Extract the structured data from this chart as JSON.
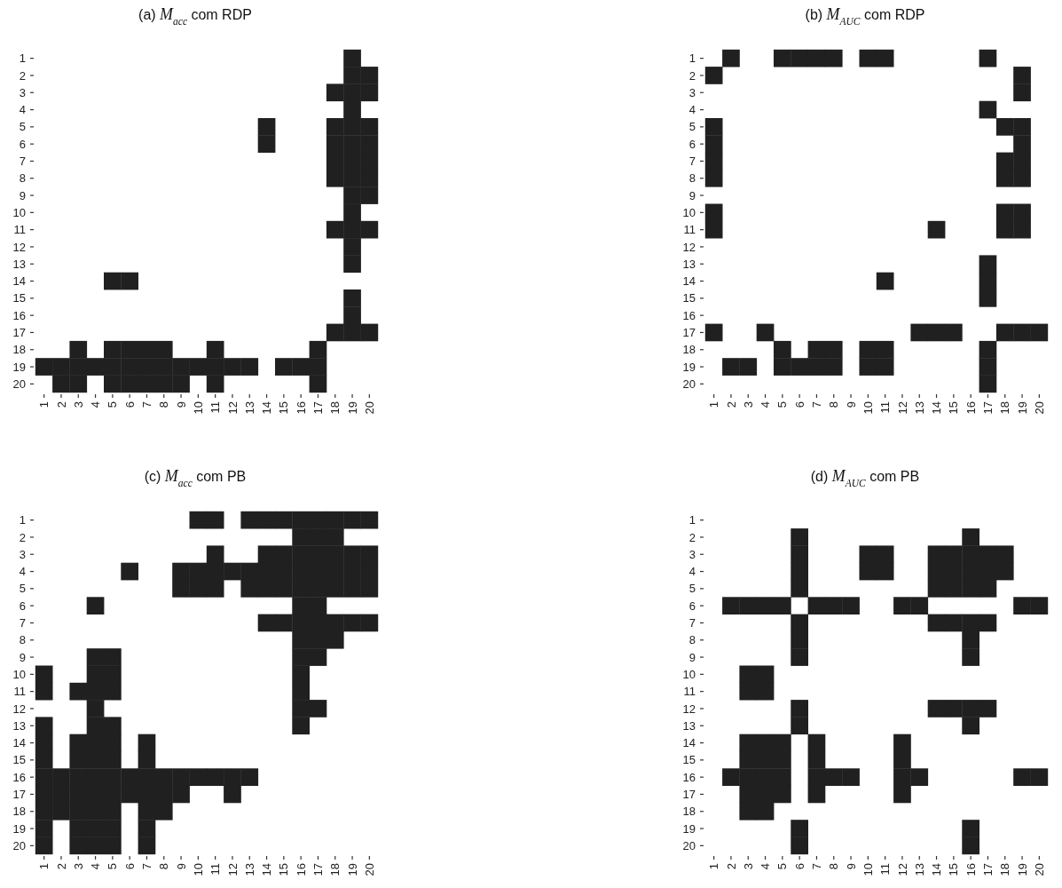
{
  "chart_data": [
    {
      "type": "scatter",
      "title": "(a) M$_{acc}$ com RDP",
      "marker": "square",
      "color": "#202020",
      "xlim": [
        1,
        20
      ],
      "ylim": [
        20,
        1
      ],
      "xticks": [
        1,
        2,
        3,
        4,
        5,
        6,
        7,
        8,
        9,
        10,
        11,
        12,
        13,
        14,
        15,
        16,
        17,
        18,
        19,
        20
      ],
      "yticks": [
        1,
        2,
        3,
        4,
        5,
        6,
        7,
        8,
        9,
        10,
        11,
        12,
        13,
        14,
        15,
        16,
        17,
        18,
        19,
        20
      ],
      "x": [
        19,
        19,
        20,
        18,
        19,
        20,
        19,
        14,
        18,
        19,
        20,
        14,
        18,
        19,
        20,
        18,
        19,
        20,
        18,
        19,
        20,
        19,
        20,
        19,
        18,
        19,
        20,
        19,
        19,
        5,
        6,
        19,
        19,
        18,
        19,
        20,
        3,
        5,
        6,
        7,
        8,
        11,
        17,
        1,
        2,
        3,
        4,
        5,
        6,
        7,
        8,
        9,
        10,
        11,
        12,
        13,
        15,
        16,
        17,
        2,
        3,
        5,
        6,
        7,
        8,
        9,
        11,
        17
      ],
      "values": [
        1,
        2,
        2,
        3,
        3,
        3,
        4,
        5,
        5,
        5,
        5,
        6,
        6,
        6,
        6,
        7,
        7,
        7,
        8,
        8,
        8,
        9,
        9,
        10,
        11,
        11,
        11,
        12,
        13,
        14,
        14,
        15,
        16,
        17,
        17,
        17,
        18,
        18,
        18,
        18,
        18,
        18,
        18,
        19,
        19,
        19,
        19,
        19,
        19,
        19,
        19,
        19,
        19,
        19,
        19,
        19,
        19,
        19,
        19,
        20,
        20,
        20,
        20,
        20,
        20,
        20,
        20,
        20
      ]
    },
    {
      "type": "scatter",
      "title": "(b) M$_{AUC}$ com RDP",
      "marker": "square",
      "color": "#202020",
      "xlim": [
        1,
        20
      ],
      "ylim": [
        20,
        1
      ],
      "xticks": [
        1,
        2,
        3,
        4,
        5,
        6,
        7,
        8,
        9,
        10,
        11,
        12,
        13,
        14,
        15,
        16,
        17,
        18,
        19,
        20
      ],
      "yticks": [
        1,
        2,
        3,
        4,
        5,
        6,
        7,
        8,
        9,
        10,
        11,
        12,
        13,
        14,
        15,
        16,
        17,
        18,
        19,
        20
      ],
      "x": [
        2,
        5,
        6,
        7,
        8,
        10,
        11,
        17,
        1,
        19,
        19,
        17,
        1,
        18,
        19,
        1,
        19,
        1,
        18,
        19,
        1,
        18,
        19,
        1,
        18,
        19,
        1,
        14,
        18,
        19,
        17,
        11,
        17,
        17,
        1,
        4,
        13,
        14,
        15,
        18,
        19,
        20,
        5,
        7,
        8,
        10,
        11,
        17,
        2,
        3,
        5,
        6,
        7,
        8,
        10,
        11,
        17,
        17
      ],
      "values": [
        1,
        1,
        1,
        1,
        1,
        1,
        1,
        1,
        2,
        2,
        3,
        4,
        5,
        5,
        5,
        6,
        6,
        7,
        7,
        7,
        8,
        8,
        8,
        10,
        10,
        10,
        11,
        11,
        11,
        11,
        13,
        14,
        14,
        15,
        17,
        17,
        17,
        17,
        17,
        17,
        17,
        17,
        18,
        18,
        18,
        18,
        18,
        18,
        19,
        19,
        19,
        19,
        19,
        19,
        19,
        19,
        19,
        20
      ]
    },
    {
      "type": "scatter",
      "title": "(c) M$_{acc}$ com PB",
      "marker": "square",
      "color": "#202020",
      "xlim": [
        1,
        20
      ],
      "ylim": [
        20,
        1
      ],
      "xticks": [
        1,
        2,
        3,
        4,
        5,
        6,
        7,
        8,
        9,
        10,
        11,
        12,
        13,
        14,
        15,
        16,
        17,
        18,
        19,
        20
      ],
      "yticks": [
        1,
        2,
        3,
        4,
        5,
        6,
        7,
        8,
        9,
        10,
        11,
        12,
        13,
        14,
        15,
        16,
        17,
        18,
        19,
        20
      ],
      "x": [
        10,
        11,
        13,
        14,
        15,
        16,
        17,
        18,
        19,
        20,
        16,
        17,
        18,
        11,
        14,
        15,
        16,
        17,
        18,
        19,
        20,
        6,
        9,
        10,
        11,
        12,
        13,
        14,
        15,
        16,
        17,
        18,
        19,
        20,
        9,
        10,
        11,
        13,
        14,
        15,
        16,
        17,
        18,
        19,
        20,
        4,
        16,
        17,
        14,
        15,
        16,
        17,
        18,
        19,
        20,
        16,
        17,
        18,
        4,
        5,
        16,
        17,
        1,
        4,
        5,
        16,
        1,
        3,
        4,
        5,
        16,
        4,
        16,
        17,
        1,
        4,
        5,
        16,
        1,
        3,
        4,
        5,
        7,
        1,
        3,
        4,
        5,
        7,
        1,
        2,
        3,
        4,
        5,
        6,
        7,
        8,
        9,
        10,
        11,
        12,
        13,
        1,
        2,
        3,
        4,
        5,
        6,
        7,
        8,
        9,
        12,
        1,
        2,
        3,
        4,
        5,
        7,
        8,
        1,
        3,
        4,
        5,
        7,
        1,
        3,
        4,
        5,
        7
      ],
      "values": [
        1,
        1,
        1,
        1,
        1,
        1,
        1,
        1,
        1,
        1,
        2,
        2,
        2,
        3,
        3,
        3,
        3,
        3,
        3,
        3,
        3,
        4,
        4,
        4,
        4,
        4,
        4,
        4,
        4,
        4,
        4,
        4,
        4,
        4,
        5,
        5,
        5,
        5,
        5,
        5,
        5,
        5,
        5,
        5,
        5,
        6,
        6,
        6,
        7,
        7,
        7,
        7,
        7,
        7,
        7,
        8,
        8,
        8,
        9,
        9,
        9,
        9,
        10,
        10,
        10,
        10,
        11,
        11,
        11,
        11,
        11,
        12,
        12,
        12,
        13,
        13,
        13,
        13,
        14,
        14,
        14,
        14,
        14,
        15,
        15,
        15,
        15,
        15,
        16,
        16,
        16,
        16,
        16,
        16,
        16,
        16,
        16,
        16,
        16,
        16,
        16,
        17,
        17,
        17,
        17,
        17,
        17,
        17,
        17,
        17,
        17,
        18,
        18,
        18,
        18,
        18,
        18,
        18,
        19,
        19,
        19,
        19,
        19,
        20,
        20,
        20,
        20,
        20
      ]
    },
    {
      "type": "scatter",
      "title": "(d) M$_{AUC}$ com PB",
      "marker": "square",
      "color": "#202020",
      "xlim": [
        1,
        20
      ],
      "ylim": [
        20,
        1
      ],
      "xticks": [
        1,
        2,
        3,
        4,
        5,
        6,
        7,
        8,
        9,
        10,
        11,
        12,
        13,
        14,
        15,
        16,
        17,
        18,
        19,
        20
      ],
      "yticks": [
        1,
        2,
        3,
        4,
        5,
        6,
        7,
        8,
        9,
        10,
        11,
        12,
        13,
        14,
        15,
        16,
        17,
        18,
        19,
        20
      ],
      "x": [
        6,
        16,
        6,
        10,
        11,
        14,
        15,
        16,
        17,
        18,
        6,
        10,
        11,
        14,
        15,
        16,
        17,
        18,
        6,
        14,
        15,
        16,
        17,
        2,
        3,
        4,
        5,
        7,
        8,
        9,
        12,
        13,
        19,
        20,
        6,
        14,
        15,
        16,
        17,
        6,
        16,
        6,
        16,
        3,
        4,
        3,
        4,
        6,
        14,
        15,
        16,
        17,
        6,
        16,
        3,
        4,
        5,
        7,
        12,
        3,
        4,
        5,
        7,
        12,
        2,
        3,
        4,
        5,
        7,
        8,
        9,
        12,
        13,
        19,
        20,
        3,
        4,
        5,
        7,
        12,
        3,
        4,
        6,
        16,
        6,
        16
      ],
      "values": [
        2,
        2,
        3,
        3,
        3,
        3,
        3,
        3,
        3,
        3,
        4,
        4,
        4,
        4,
        4,
        4,
        4,
        4,
        5,
        5,
        5,
        5,
        5,
        6,
        6,
        6,
        6,
        6,
        6,
        6,
        6,
        6,
        6,
        6,
        7,
        7,
        7,
        7,
        7,
        8,
        8,
        9,
        9,
        10,
        10,
        11,
        11,
        12,
        12,
        12,
        12,
        12,
        13,
        13,
        14,
        14,
        14,
        14,
        14,
        15,
        15,
        15,
        15,
        15,
        16,
        16,
        16,
        16,
        16,
        16,
        16,
        16,
        16,
        16,
        16,
        17,
        17,
        17,
        17,
        17,
        18,
        18,
        19,
        19,
        20,
        20
      ]
    }
  ]
}
